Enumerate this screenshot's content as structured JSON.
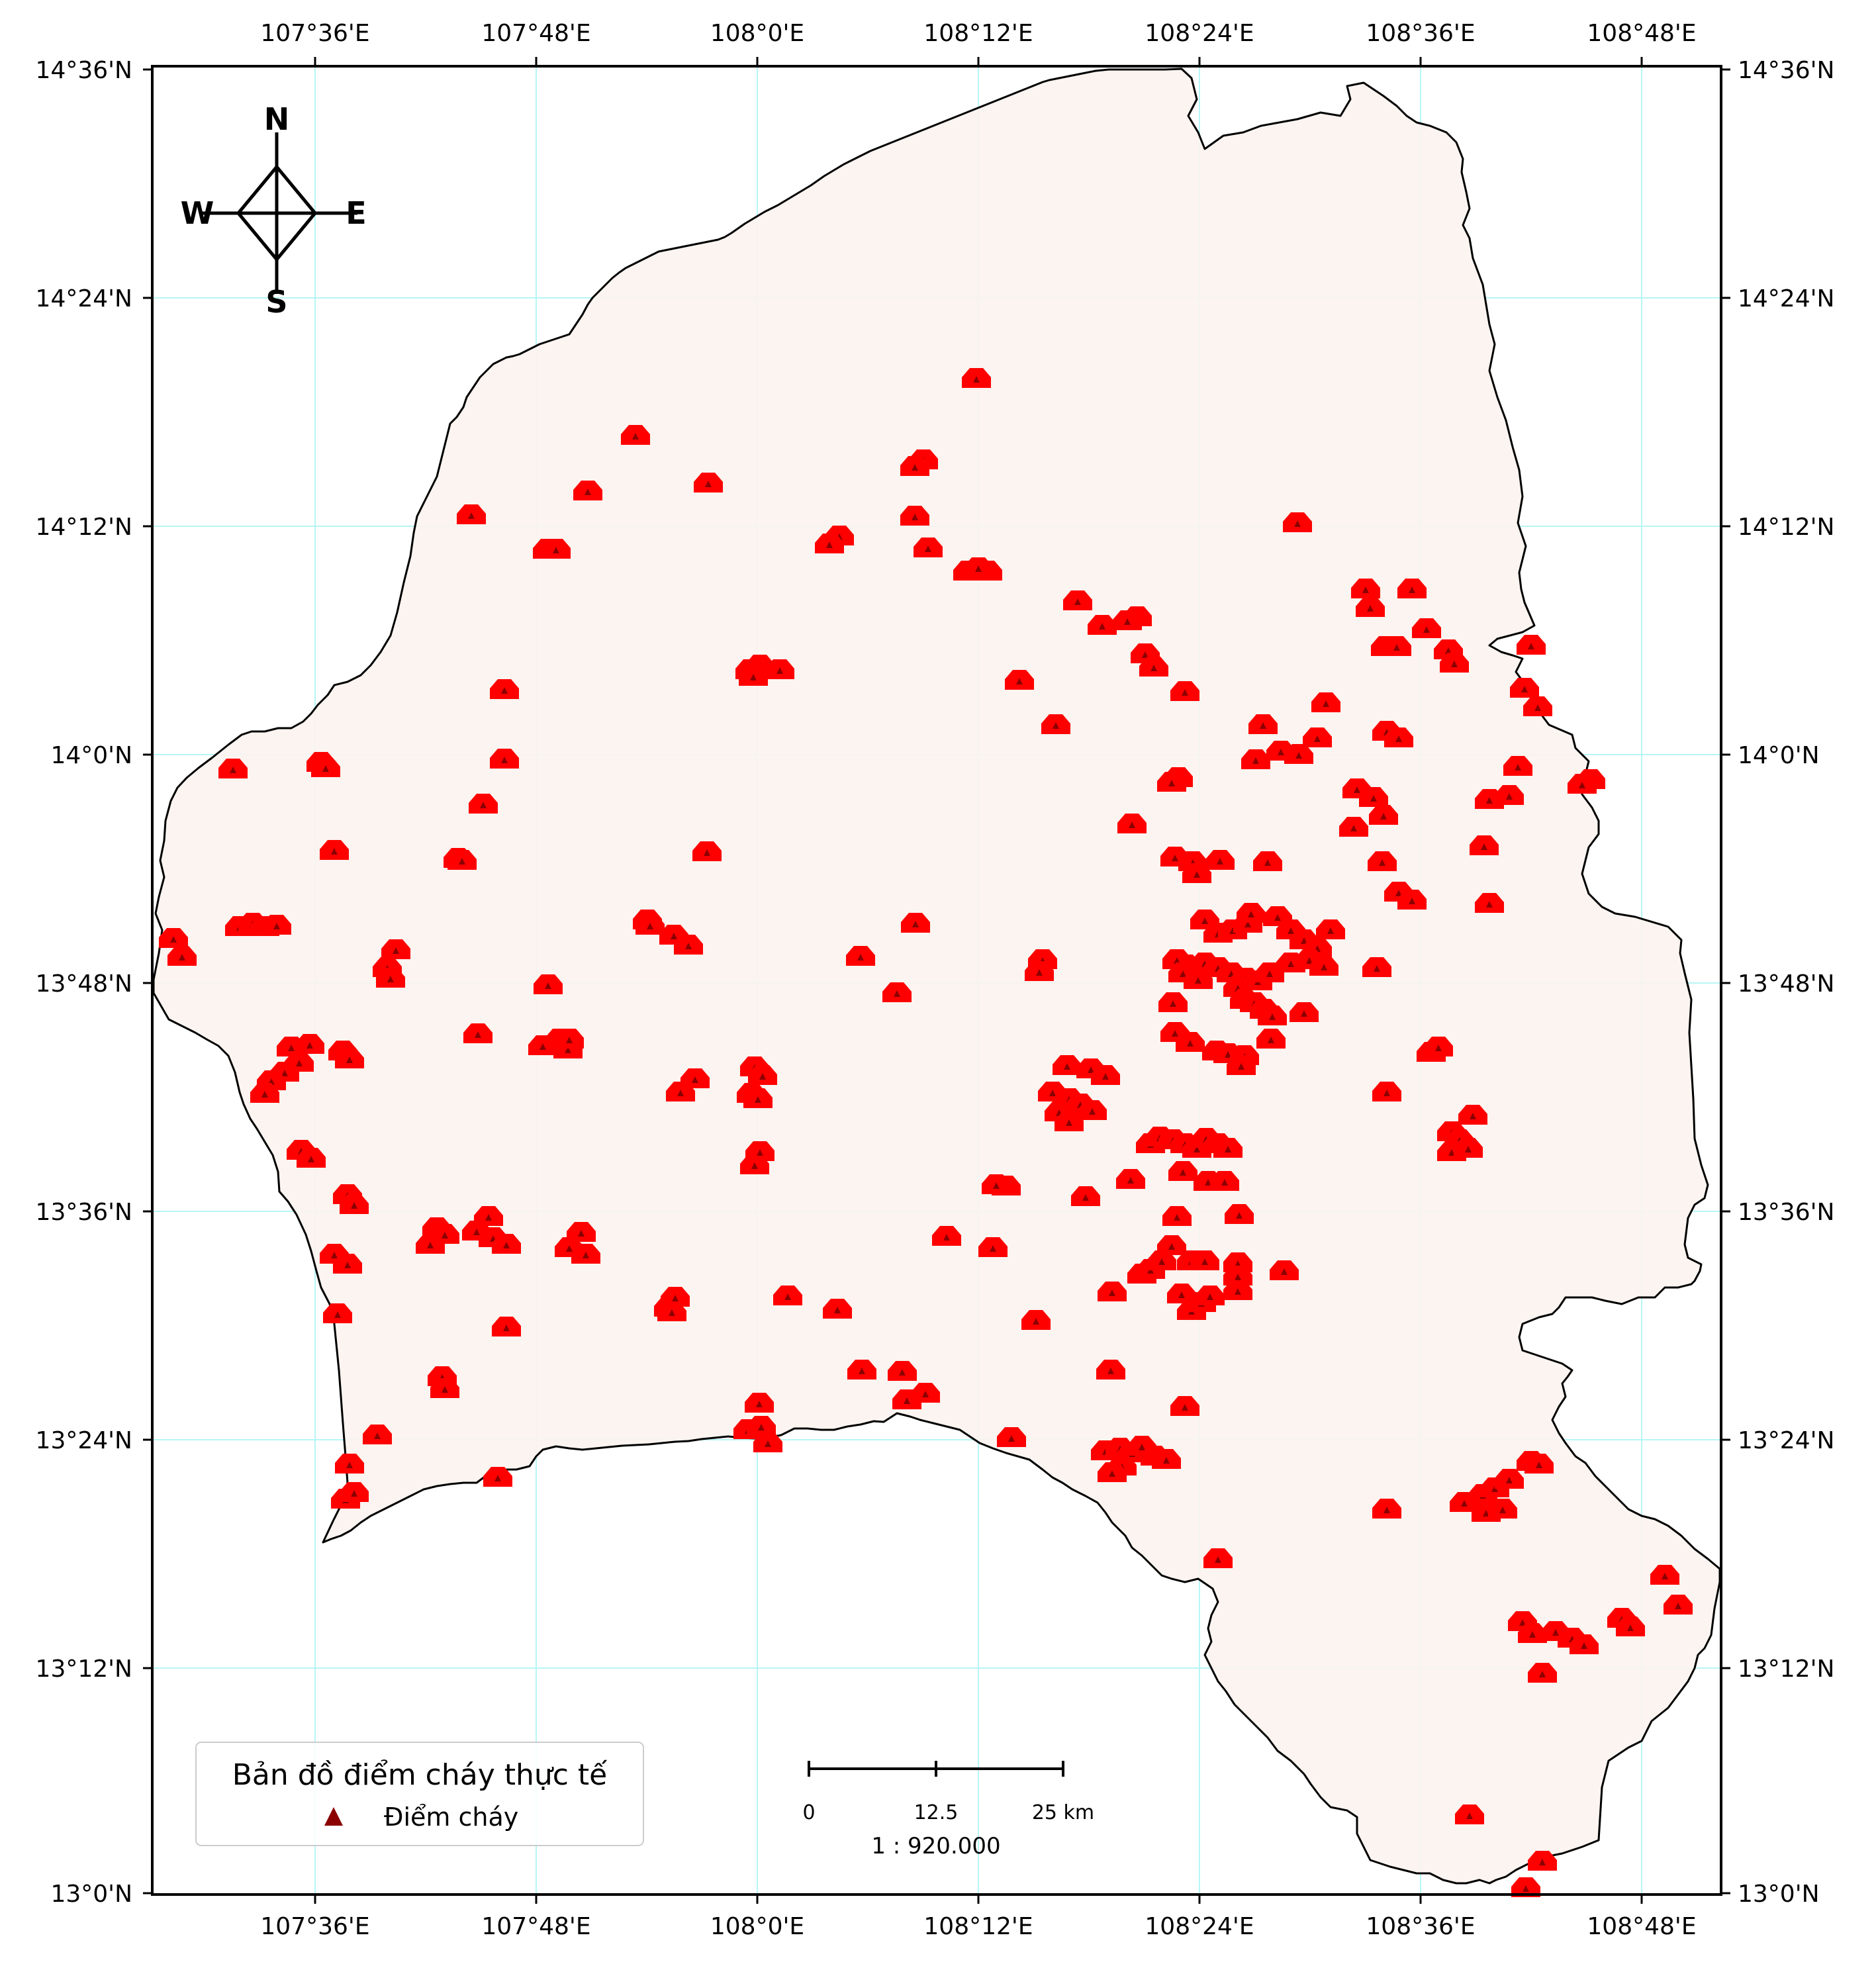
{
  "map": {
    "longitude_labels": [
      "107°36'E",
      "107°48'E",
      "108°0'E",
      "108°12'E",
      "108°24'E",
      "108°36'E",
      "108°48'E"
    ],
    "latitude_labels": [
      "14°36'N",
      "14°24'N",
      "14°12'N",
      "14°0'N",
      "13°48'N",
      "13°36'N",
      "13°24'N",
      "13°12'N",
      "13°0'N"
    ],
    "compass": {
      "north": "N",
      "south": "S",
      "east": "E",
      "west": "W"
    },
    "legend": {
      "title": "Bản đồ điểm cháy thực tế",
      "item_label": "Điểm cháy",
      "item_color": "#8b0000"
    },
    "scale_bar": {
      "labels": [
        "0",
        "12.5",
        "25 km"
      ],
      "ratio": "1 : 920.000"
    },
    "colors": {
      "land": "#fbf3ef",
      "boundary": "#000000",
      "fire_point": "#ff0000",
      "fire_marker": "#8b0000",
      "gridline": "#b7f5f5"
    }
  }
}
